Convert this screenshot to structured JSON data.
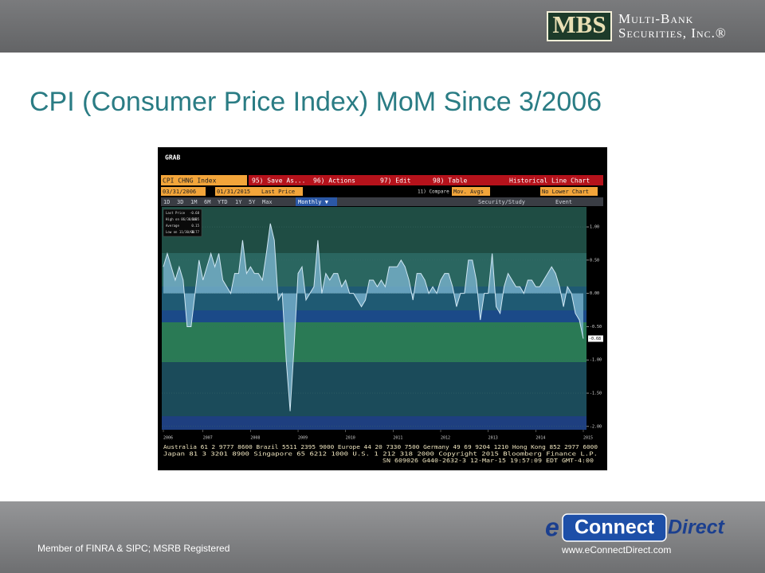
{
  "header": {
    "logo_mark": "MBS",
    "logo_line1": "Multi-Bank",
    "logo_line2": "Securities, Inc.®"
  },
  "title": "CPI (Consumer Price Index) MoM Since 3/2006",
  "terminal": {
    "grab": "GRAB",
    "security": "CPI CHNG Index",
    "menu": [
      "95) Save As...",
      "96) Actions",
      "97) Edit",
      "98) Table"
    ],
    "chart_kind": "Historical Line Chart",
    "start_date": "03/31/2006",
    "end_date": "01/31/2015",
    "field": "Last Price",
    "compare": "11) Compare",
    "compare_value": "Mov. Avgs",
    "lower_chart": "No Lower Chart",
    "periods": [
      "1D",
      "3D",
      "1M",
      "6M",
      "YTD",
      "1Y",
      "5Y",
      "Max"
    ],
    "frequency": "Monthly ▼",
    "study": "Security/Study",
    "event": "Event",
    "legend": [
      {
        "label": "Last Price",
        "value": -0.68
      },
      {
        "label": "High on 06/30/08",
        "value": 1.05
      },
      {
        "label": "Average",
        "value": 0.15
      },
      {
        "label": "Low on 11/30/08",
        "value": -1.77
      }
    ],
    "footer_lines": [
      "Australia 61 2 9777 8600 Brazil 5511 2395 9000 Europe 44 20 7330 7500 Germany 49 69 9204 1210 Hong Kong 852 2977 6000",
      "Japan 81 3 3201 8900      Singapore 65 6212 1000      U.S. 1 212 318 2000      Copyright 2015 Bloomberg Finance L.P.",
      "SN 609026 G440-2632-3 12-Mar-15 19:57:09 EDT  GMT-4:00"
    ]
  },
  "chart_data": {
    "type": "area",
    "color": "#7fb8d4",
    "line_color": "#cfe6f2",
    "categories": [
      "2006-03",
      "2006-04",
      "2006-05",
      "2006-06",
      "2006-07",
      "2006-08",
      "2006-09",
      "2006-10",
      "2006-11",
      "2006-12",
      "2007-01",
      "2007-02",
      "2007-03",
      "2007-04",
      "2007-05",
      "2007-06",
      "2007-07",
      "2007-08",
      "2007-09",
      "2007-10",
      "2007-11",
      "2007-12",
      "2008-01",
      "2008-02",
      "2008-03",
      "2008-04",
      "2008-05",
      "2008-06",
      "2008-07",
      "2008-08",
      "2008-09",
      "2008-10",
      "2008-11",
      "2008-12",
      "2009-01",
      "2009-02",
      "2009-03",
      "2009-04",
      "2009-05",
      "2009-06",
      "2009-07",
      "2009-08",
      "2009-09",
      "2009-10",
      "2009-11",
      "2009-12",
      "2010-01",
      "2010-02",
      "2010-03",
      "2010-04",
      "2010-05",
      "2010-06",
      "2010-07",
      "2010-08",
      "2010-09",
      "2010-10",
      "2010-11",
      "2010-12",
      "2011-01",
      "2011-02",
      "2011-03",
      "2011-04",
      "2011-05",
      "2011-06",
      "2011-07",
      "2011-08",
      "2011-09",
      "2011-10",
      "2011-11",
      "2011-12",
      "2012-01",
      "2012-02",
      "2012-03",
      "2012-04",
      "2012-05",
      "2012-06",
      "2012-07",
      "2012-08",
      "2012-09",
      "2012-10",
      "2012-11",
      "2012-12",
      "2013-01",
      "2013-02",
      "2013-03",
      "2013-04",
      "2013-05",
      "2013-06",
      "2013-07",
      "2013-08",
      "2013-09",
      "2013-10",
      "2013-11",
      "2013-12",
      "2014-01",
      "2014-02",
      "2014-03",
      "2014-04",
      "2014-05",
      "2014-06",
      "2014-07",
      "2014-08",
      "2014-09",
      "2014-10",
      "2014-11",
      "2014-12",
      "2015-01"
    ],
    "values": [
      0.4,
      0.6,
      0.4,
      0.2,
      0.4,
      0.2,
      -0.5,
      -0.5,
      0.0,
      0.5,
      0.2,
      0.4,
      0.6,
      0.4,
      0.6,
      0.2,
      0.1,
      0.0,
      0.3,
      0.3,
      0.8,
      0.3,
      0.4,
      0.3,
      0.3,
      0.2,
      0.6,
      1.05,
      0.8,
      -0.1,
      0.0,
      -1.0,
      -1.77,
      -0.8,
      0.3,
      0.4,
      -0.1,
      0.0,
      0.1,
      0.8,
      0.0,
      0.3,
      0.2,
      0.3,
      0.3,
      0.1,
      0.2,
      0.0,
      0.0,
      -0.1,
      -0.2,
      -0.1,
      0.2,
      0.2,
      0.1,
      0.2,
      0.1,
      0.4,
      0.4,
      0.4,
      0.5,
      0.4,
      0.2,
      -0.1,
      0.3,
      0.3,
      0.2,
      0.0,
      0.1,
      0.0,
      0.2,
      0.3,
      0.3,
      0.1,
      -0.2,
      0.0,
      0.0,
      0.5,
      0.5,
      0.2,
      -0.4,
      0.0,
      0.0,
      0.6,
      -0.2,
      -0.3,
      0.1,
      0.3,
      0.2,
      0.1,
      0.1,
      0.0,
      0.2,
      0.2,
      0.1,
      0.1,
      0.2,
      0.3,
      0.4,
      0.3,
      0.1,
      -0.2,
      0.1,
      0.0,
      -0.3,
      -0.4,
      -0.68
    ],
    "x_years": [
      "2006",
      "2007",
      "2008",
      "2009",
      "2010",
      "2011",
      "2012",
      "2013",
      "2014",
      "2015"
    ],
    "ylim": [
      -2.05,
      1.3
    ],
    "yticks": [
      {
        "value": 1,
        "label": "1.00"
      },
      {
        "value": 0.5,
        "label": "0.50"
      },
      {
        "value": 0,
        "label": "0.00"
      },
      {
        "value": -0.5,
        "label": "-0.50"
      },
      {
        "value": -1,
        "label": "-1.00"
      },
      {
        "value": -1.5,
        "label": "-1.50"
      },
      {
        "value": -2,
        "label": "-2.00"
      }
    ],
    "grid": true
  },
  "footer": {
    "disclosure": "Member of FINRA & SIPC; MSRB Registered",
    "brand_e": "e",
    "brand_connect": "Connect",
    "brand_direct": "Direct",
    "url": "www.eConnectDirect.com"
  }
}
